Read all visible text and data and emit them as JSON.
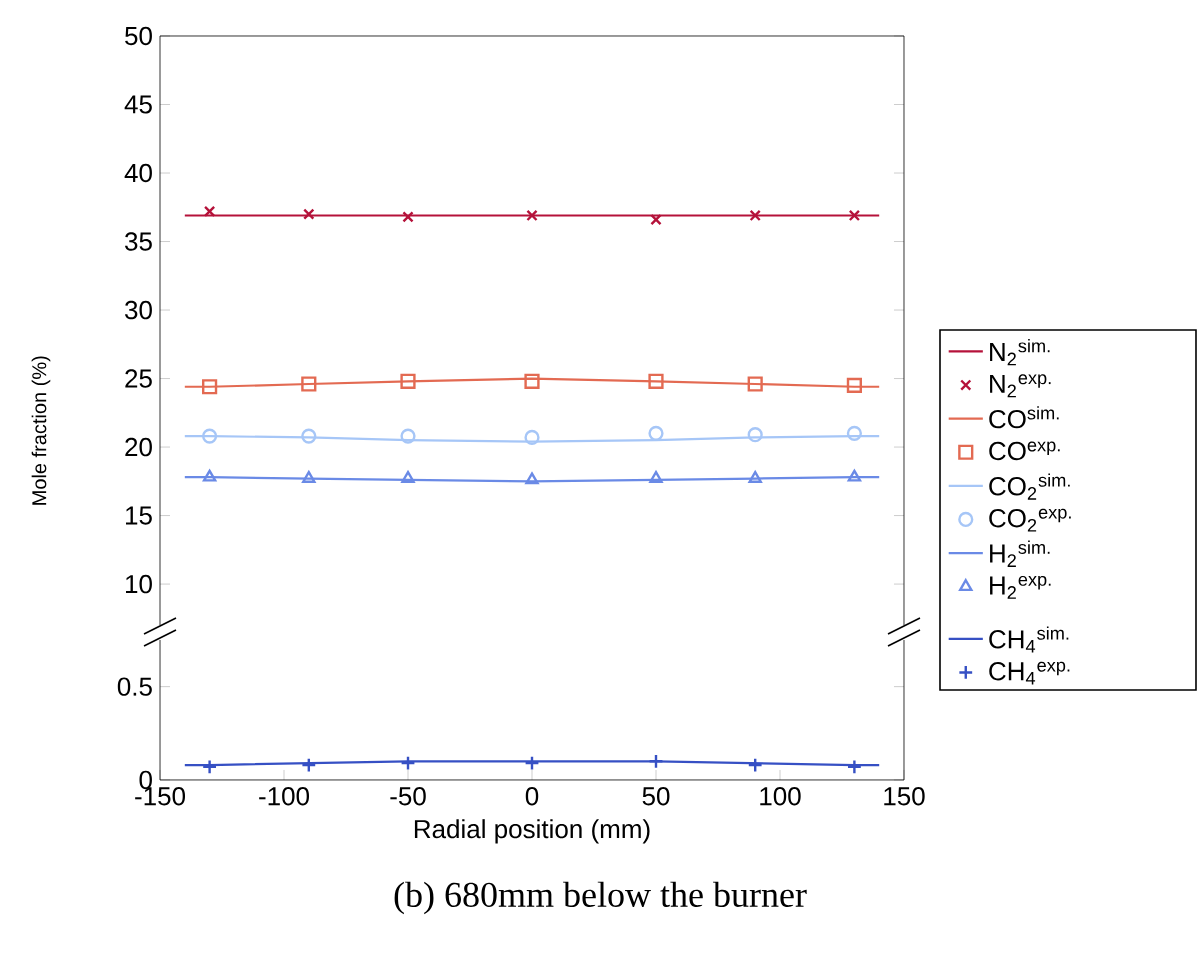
{
  "chart_data": [
    {
      "type": "line",
      "ylabel": "Mole fraction (%)",
      "xlim": [
        -150,
        150
      ],
      "ylim": [
        7,
        50
      ],
      "yticks": [
        10,
        15,
        20,
        25,
        30,
        35,
        40,
        45,
        50
      ],
      "tick_labels": "y",
      "grid": false,
      "legend": "right",
      "series": [
        {
          "name": "N$_{2}$$^{sim.}$",
          "color": "#b5123a",
          "marker": "none",
          "x": [
            -140,
            -130,
            -90,
            -50,
            0,
            50,
            90,
            130,
            140
          ],
          "values": [
            36.9,
            36.9,
            36.9,
            36.9,
            36.9,
            36.9,
            36.9,
            36.9,
            36.9
          ]
        },
        {
          "name": "N$_{2}$$^{exp.}$",
          "type": "scatter",
          "color": "#b5123a",
          "marker": "cross",
          "x": [
            -130,
            -90,
            -50,
            0,
            50,
            90,
            130
          ],
          "values": [
            37.2,
            37.0,
            36.8,
            36.9,
            36.6,
            36.9,
            36.9
          ]
        },
        {
          "name": "CO$^{sim.}$",
          "color": "#e36a52",
          "marker": "none",
          "x": [
            -140,
            -130,
            -90,
            -50,
            0,
            50,
            90,
            130,
            140
          ],
          "values": [
            24.4,
            24.4,
            24.6,
            24.8,
            25.0,
            24.8,
            24.6,
            24.4,
            24.4
          ]
        },
        {
          "name": "CO$^{exp.}$",
          "type": "scatter",
          "color": "#e36a52",
          "marker": "square",
          "x": [
            -130,
            -90,
            -50,
            0,
            50,
            90,
            130
          ],
          "values": [
            24.4,
            24.6,
            24.8,
            24.8,
            24.8,
            24.6,
            24.5
          ]
        },
        {
          "name": "CO$_{2}$$^{sim.}$",
          "color": "#a6c6f7",
          "marker": "none",
          "x": [
            -140,
            -130,
            -90,
            -50,
            0,
            50,
            90,
            130,
            140
          ],
          "values": [
            20.8,
            20.8,
            20.7,
            20.5,
            20.4,
            20.5,
            20.7,
            20.8,
            20.8
          ]
        },
        {
          "name": "CO$_{2}$$^{exp.}$",
          "type": "scatter",
          "color": "#a6c6f7",
          "marker": "circle",
          "x": [
            -130,
            -90,
            -50,
            0,
            50,
            90,
            130
          ],
          "values": [
            20.8,
            20.8,
            20.8,
            20.7,
            21.0,
            20.9,
            21.0
          ]
        },
        {
          "name": "H$_{2}$$^{sim.}$",
          "color": "#6a8ae6",
          "marker": "none",
          "x": [
            -140,
            -130,
            -90,
            -50,
            0,
            50,
            90,
            130,
            140
          ],
          "values": [
            17.8,
            17.8,
            17.7,
            17.6,
            17.5,
            17.6,
            17.7,
            17.8,
            17.8
          ]
        },
        {
          "name": "H$_{2}$$^{exp.}$",
          "type": "scatter",
          "color": "#6a8ae6",
          "marker": "triangle",
          "x": [
            -130,
            -90,
            -50,
            0,
            50,
            90,
            130
          ],
          "values": [
            17.8,
            17.7,
            17.7,
            17.6,
            17.7,
            17.7,
            17.8
          ]
        }
      ]
    },
    {
      "type": "line",
      "xlabel": "Radial position (mm)",
      "xlim": [
        -150,
        150
      ],
      "xticks": [
        -150,
        -100,
        -50,
        0,
        50,
        100,
        150
      ],
      "ylim": [
        0,
        0.75
      ],
      "yticks": [
        0,
        0.5
      ],
      "grid": false,
      "legend": "right",
      "annotations": [
        "(b) 680mm below the burner"
      ],
      "series": [
        {
          "name": "CH$_{4}$$^{sim.}$",
          "color": "#3650c4",
          "marker": "none",
          "x": [
            -140,
            -130,
            -90,
            -50,
            0,
            50,
            90,
            130,
            140
          ],
          "values": [
            0.08,
            0.08,
            0.09,
            0.1,
            0.1,
            0.1,
            0.09,
            0.08,
            0.08
          ]
        },
        {
          "name": "CH$_{4}$$^{exp.}$",
          "type": "scatter",
          "color": "#3650c4",
          "marker": "plus",
          "x": [
            -130,
            -90,
            -50,
            0,
            50,
            90,
            130
          ],
          "values": [
            0.07,
            0.08,
            0.09,
            0.09,
            0.1,
            0.08,
            0.07
          ]
        }
      ]
    }
  ]
}
